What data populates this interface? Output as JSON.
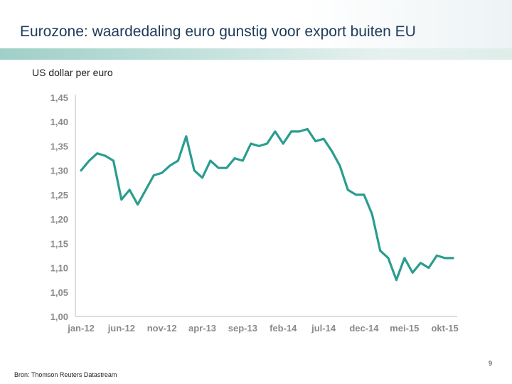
{
  "header": {
    "title": "Eurozone: waardedaling euro gunstig voor export buiten EU"
  },
  "footer": {
    "source": "Bron: Thomson Reuters Datastream",
    "page_number": "9"
  },
  "colors": {
    "line": "#2a9d8f",
    "axis": "#bbbbbb",
    "tick_text": "#8a8a8a"
  },
  "chart_data": {
    "type": "line",
    "title": "",
    "subtitle": "US dollar per euro",
    "xlabel": "",
    "ylabel": "",
    "ylim": [
      1.0,
      1.45
    ],
    "yticks": [
      1.0,
      1.05,
      1.1,
      1.15,
      1.2,
      1.25,
      1.3,
      1.35,
      1.4,
      1.45
    ],
    "ytick_labels": [
      "1,00",
      "1,05",
      "1,10",
      "1,15",
      "1,20",
      "1,25",
      "1,30",
      "1,35",
      "1,40",
      "1,45"
    ],
    "xtick_labels": [
      "jan-12",
      "jun-12",
      "nov-12",
      "apr-13",
      "sep-13",
      "feb-14",
      "jul-14",
      "dec-14",
      "mei-15",
      "okt-15"
    ],
    "xtick_positions": [
      0,
      5,
      10,
      15,
      20,
      25,
      30,
      35,
      40,
      45
    ],
    "grid": false,
    "series": [
      {
        "name": "US dollar per euro",
        "x": [
          0,
          1,
          2,
          3,
          4,
          5,
          6,
          7,
          8,
          9,
          10,
          11,
          12,
          13,
          14,
          15,
          16,
          17,
          18,
          19,
          20,
          21,
          22,
          23,
          24,
          25,
          26,
          27,
          28,
          29,
          30,
          31,
          32,
          33,
          34,
          35,
          36,
          37,
          38,
          39,
          40,
          41,
          42,
          43,
          44,
          45,
          46
        ],
        "values": [
          1.3,
          1.32,
          1.335,
          1.33,
          1.32,
          1.24,
          1.26,
          1.23,
          1.26,
          1.29,
          1.295,
          1.31,
          1.32,
          1.37,
          1.3,
          1.285,
          1.32,
          1.305,
          1.305,
          1.325,
          1.32,
          1.355,
          1.35,
          1.355,
          1.38,
          1.355,
          1.38,
          1.38,
          1.385,
          1.36,
          1.365,
          1.34,
          1.31,
          1.26,
          1.25,
          1.25,
          1.21,
          1.135,
          1.12,
          1.075,
          1.12,
          1.09,
          1.11,
          1.1,
          1.125,
          1.12,
          1.12
        ]
      }
    ]
  }
}
